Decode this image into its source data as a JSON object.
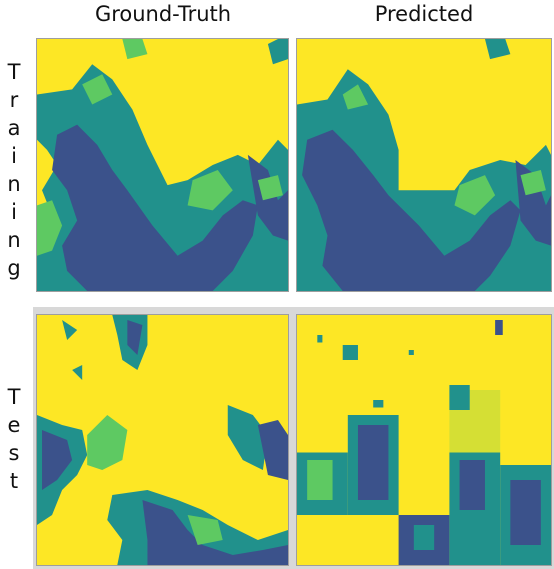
{
  "columns": {
    "ground_truth": "Ground-Truth",
    "predicted": "Predicted"
  },
  "rows": {
    "training": [
      "T",
      "r",
      "a",
      "i",
      "n",
      "i",
      "n",
      "g"
    ],
    "test": [
      "T",
      "e",
      "s",
      "t"
    ]
  },
  "palette": {
    "yellow": "#fde725",
    "green": "#5ec962",
    "teal": "#21918c",
    "purple": "#3b528b",
    "band_gray": "#d8d8d8"
  }
}
